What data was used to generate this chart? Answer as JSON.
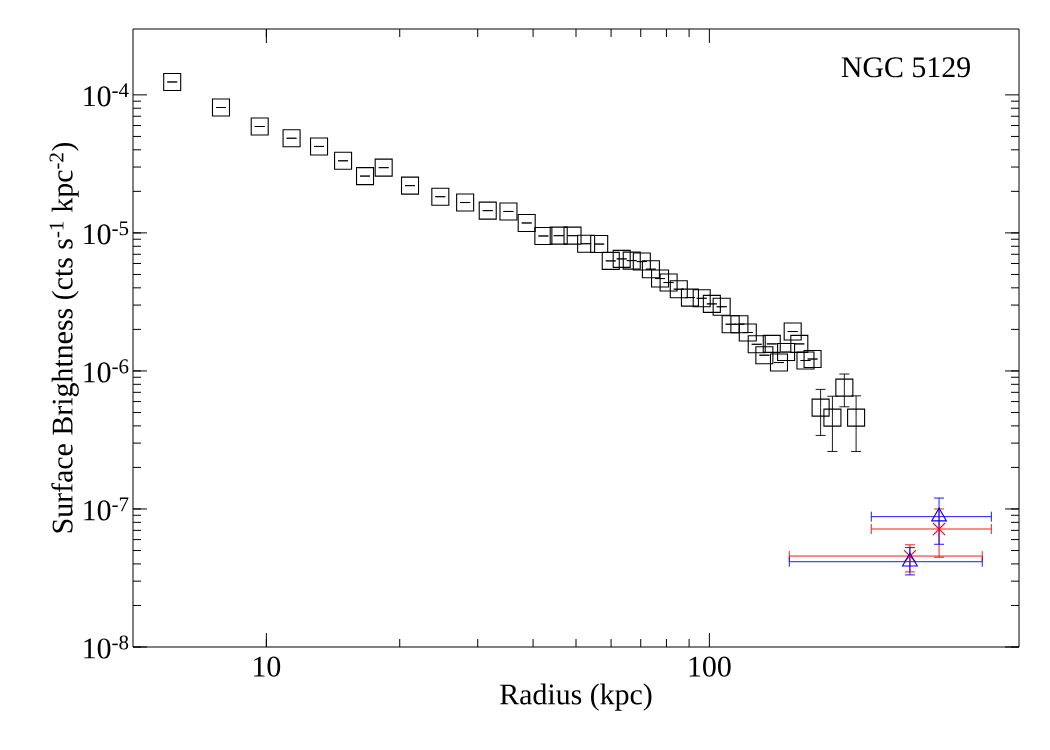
{
  "chart_data": {
    "type": "scatter",
    "xlabel": "Radius (kpc)",
    "ylabel": "Surface Brightness (cts s$^{-1}$ kpc$^{-2}$)",
    "annotations": [
      "NGC 5129"
    ],
    "log": "xy",
    "xlim": [
      5,
      500
    ],
    "ylim": [
      1e-08,
      0.0003
    ],
    "xticks": [
      10,
      100
    ],
    "yticks": [
      {
        "value": 1e-08,
        "label": "10$^{-8}$"
      },
      {
        "value": 1e-07,
        "label": "10$^{-7}$"
      },
      {
        "value": 1e-06,
        "label": "10$^{-6}$"
      },
      {
        "value": 1e-05,
        "label": "10$^{-5}$"
      },
      {
        "value": 0.0001,
        "label": "10$^{-4}$"
      }
    ],
    "series": [
      {
        "color": "#000000",
        "marker": "square",
        "x": [
          6.13,
          7.9,
          9.66,
          11.4,
          13.15,
          14.9,
          16.7,
          18.4,
          21.1,
          24.7,
          28.1,
          31.6,
          35.2,
          38.7,
          42.2,
          45.7,
          49.1,
          52.7,
          56.4,
          59.9,
          63.4,
          66.8,
          70.4,
          73.8,
          77.4,
          80.9,
          85.3,
          90.4,
          96.1,
          101.3,
          106.6,
          111.7,
          116.9,
          122.1,
          127.9,
          133.1,
          138.3,
          143.6,
          149,
          154.2,
          159.6,
          164.8,
          171,
          178.3,
          189.6,
          201.7,
          214.4
        ],
        "values": [
          0.000124,
          8.1e-05,
          5.9e-05,
          4.85e-05,
          4.23e-05,
          3.33e-05,
          2.58e-05,
          2.97e-05,
          2.2e-05,
          1.83e-05,
          1.66e-05,
          1.45e-05,
          1.43e-05,
          1.18e-05,
          9.5e-06,
          9.55e-06,
          9.55e-06,
          8.35e-06,
          8.3e-06,
          6.27e-06,
          6.48e-06,
          6.3e-06,
          6.2e-06,
          5.46e-06,
          4.67e-06,
          4.37e-06,
          3.91e-06,
          3.4e-06,
          3.36e-06,
          3.06e-06,
          2.92e-06,
          2.18e-06,
          2.18e-06,
          1.9e-06,
          1.56e-06,
          1.3e-06,
          1.57e-06,
          1.15e-06,
          1.37e-06,
          1.93e-06,
          1.57e-06,
          1.19e-06,
          1.22e-06,
          5.42e-07,
          4.59e-07,
          7.57e-07,
          4.59e-07
        ],
        "errors": [
          null,
          null,
          null,
          null,
          null,
          null,
          null,
          null,
          null,
          null,
          null,
          null,
          null,
          null,
          null,
          null,
          null,
          null,
          null,
          null,
          null,
          null,
          null,
          null,
          null,
          null,
          null,
          null,
          null,
          null,
          null,
          null,
          null,
          null,
          null,
          null,
          null,
          null,
          null,
          null,
          null,
          null,
          null,
          [
            3.41e-07,
            7.35e-07
          ],
          [
            2.61e-07,
            6.56e-07
          ],
          [
            5.5e-07,
            9.5e-07
          ],
          [
            2.61e-07,
            6.6e-07
          ]
        ]
      },
      {
        "color": "#ff0000",
        "marker": "cross",
        "x": [
          283.6,
          330
        ],
        "values": [
          4.56e-08,
          7.16e-08
        ],
        "errors": [
          [
            3.5e-08,
            5.5e-08
          ],
          [
            4.47e-08,
            1e-07
          ]
        ],
        "xerrors": [
          [
            151.5,
            413
          ],
          [
            232,
            433
          ]
        ]
      },
      {
        "color": "#0000ff",
        "marker": "triangle",
        "x": [
          283.6,
          330
        ],
        "values": [
          4.15e-08,
          8.8e-08
        ],
        "errors": [
          [
            3.33e-08,
            5.25e-08
          ],
          [
            5.55e-08,
            1.2e-07
          ]
        ],
        "xerrors": [
          [
            151.5,
            413
          ],
          [
            232,
            433
          ]
        ]
      }
    ]
  }
}
